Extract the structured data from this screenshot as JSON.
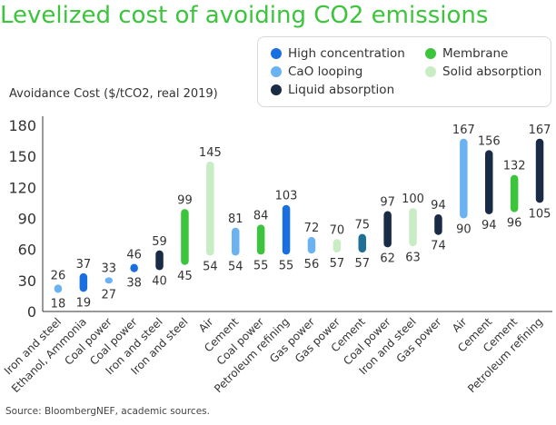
{
  "colors": {
    "High concentration": "#1a6fe0",
    "CaO looping": "#6ab2f2",
    "Liquid absorption": "#1a2b45",
    "Membrane": "#3cc43c",
    "Solid absorption": "#c8edc4",
    "Cement (Liquid absorption variant)": "#1f6f96"
  },
  "legend": [
    {
      "label": "High concentration",
      "color": "#1a6fe0"
    },
    {
      "label": "Membrane",
      "color": "#3cc43c"
    },
    {
      "label": "CaO looping",
      "color": "#6ab2f2"
    },
    {
      "label": "Solid absorption",
      "color": "#c8edc4"
    },
    {
      "label": "Liquid absorption",
      "color": "#1a2b45"
    }
  ],
  "source": "Source: BloombergNEF, academic sources.",
  "chart_data": {
    "type": "bar",
    "subtype": "floating range bars",
    "title": "Levelized cost of avoiding CO2 emissions",
    "ylabel": "Avoidance Cost ($/tCO2, real 2019)",
    "xlabel": "",
    "ylim": [
      0,
      180
    ],
    "yticks": [
      0,
      30,
      60,
      90,
      120,
      150,
      180
    ],
    "grid": false,
    "legend_position": "top-right",
    "categories": [
      "Iron and steel",
      "Ethanol, Ammonia",
      "Coal power",
      "Coal power",
      "Iron and steel",
      "Iron and steel",
      "Air",
      "Cement",
      "Coal power",
      "Petroleum refining",
      "Gas power",
      "Gas power",
      "Cement",
      "Coal power",
      "Iron and steel",
      "Gas power",
      "Air",
      "Cement",
      "Cement",
      "Petroleum refining"
    ],
    "bars": [
      {
        "category": "Iron and steel",
        "technology": "CaO looping",
        "low": 18,
        "high": 26,
        "color": "#6ab2f2"
      },
      {
        "category": "Ethanol, Ammonia",
        "technology": "High concentration",
        "low": 19,
        "high": 37,
        "color": "#1a6fe0"
      },
      {
        "category": "Coal power",
        "technology": "CaO looping",
        "low": 27,
        "high": 33,
        "color": "#6ab2f2"
      },
      {
        "category": "Coal power",
        "technology": "High concentration",
        "low": 38,
        "high": 46,
        "color": "#1a6fe0"
      },
      {
        "category": "Iron and steel",
        "technology": "Liquid absorption",
        "low": 40,
        "high": 59,
        "color": "#1a2b45"
      },
      {
        "category": "Iron and steel",
        "technology": "Membrane",
        "low": 45,
        "high": 99,
        "color": "#3cc43c"
      },
      {
        "category": "Air",
        "technology": "Solid absorption",
        "low": 54,
        "high": 145,
        "color": "#c8edc4"
      },
      {
        "category": "Cement",
        "technology": "CaO looping",
        "low": 54,
        "high": 81,
        "color": "#6ab2f2"
      },
      {
        "category": "Coal power",
        "technology": "Membrane",
        "low": 55,
        "high": 84,
        "color": "#3cc43c"
      },
      {
        "category": "Petroleum refining",
        "technology": "High concentration",
        "low": 55,
        "high": 103,
        "color": "#1a6fe0"
      },
      {
        "category": "Gas power",
        "technology": "CaO looping",
        "low": 56,
        "high": 72,
        "color": "#6ab2f2"
      },
      {
        "category": "Gas power",
        "technology": "Solid absorption",
        "low": 57,
        "high": 70,
        "color": "#c8edc4"
      },
      {
        "category": "Cement",
        "technology": "Liquid absorption",
        "low": 57,
        "high": 75,
        "color": "#1f6f96"
      },
      {
        "category": "Coal power",
        "technology": "Liquid absorption",
        "low": 62,
        "high": 97,
        "color": "#1a2b45"
      },
      {
        "category": "Iron and steel",
        "technology": "Solid absorption",
        "low": 63,
        "high": 100,
        "color": "#c8edc4"
      },
      {
        "category": "Gas power",
        "technology": "Liquid absorption",
        "low": 74,
        "high": 94,
        "color": "#1a2b45"
      },
      {
        "category": "Air",
        "technology": "CaO looping",
        "low": 90,
        "high": 167,
        "color": "#6ab2f2"
      },
      {
        "category": "Cement",
        "technology": "Liquid absorption",
        "low": 94,
        "high": 156,
        "color": "#1a2b45"
      },
      {
        "category": "Cement",
        "technology": "Membrane",
        "low": 96,
        "high": 132,
        "color": "#3cc43c"
      },
      {
        "category": "Petroleum refining",
        "technology": "Liquid absorption",
        "low": 105,
        "high": 167,
        "color": "#1a2b45"
      }
    ]
  }
}
